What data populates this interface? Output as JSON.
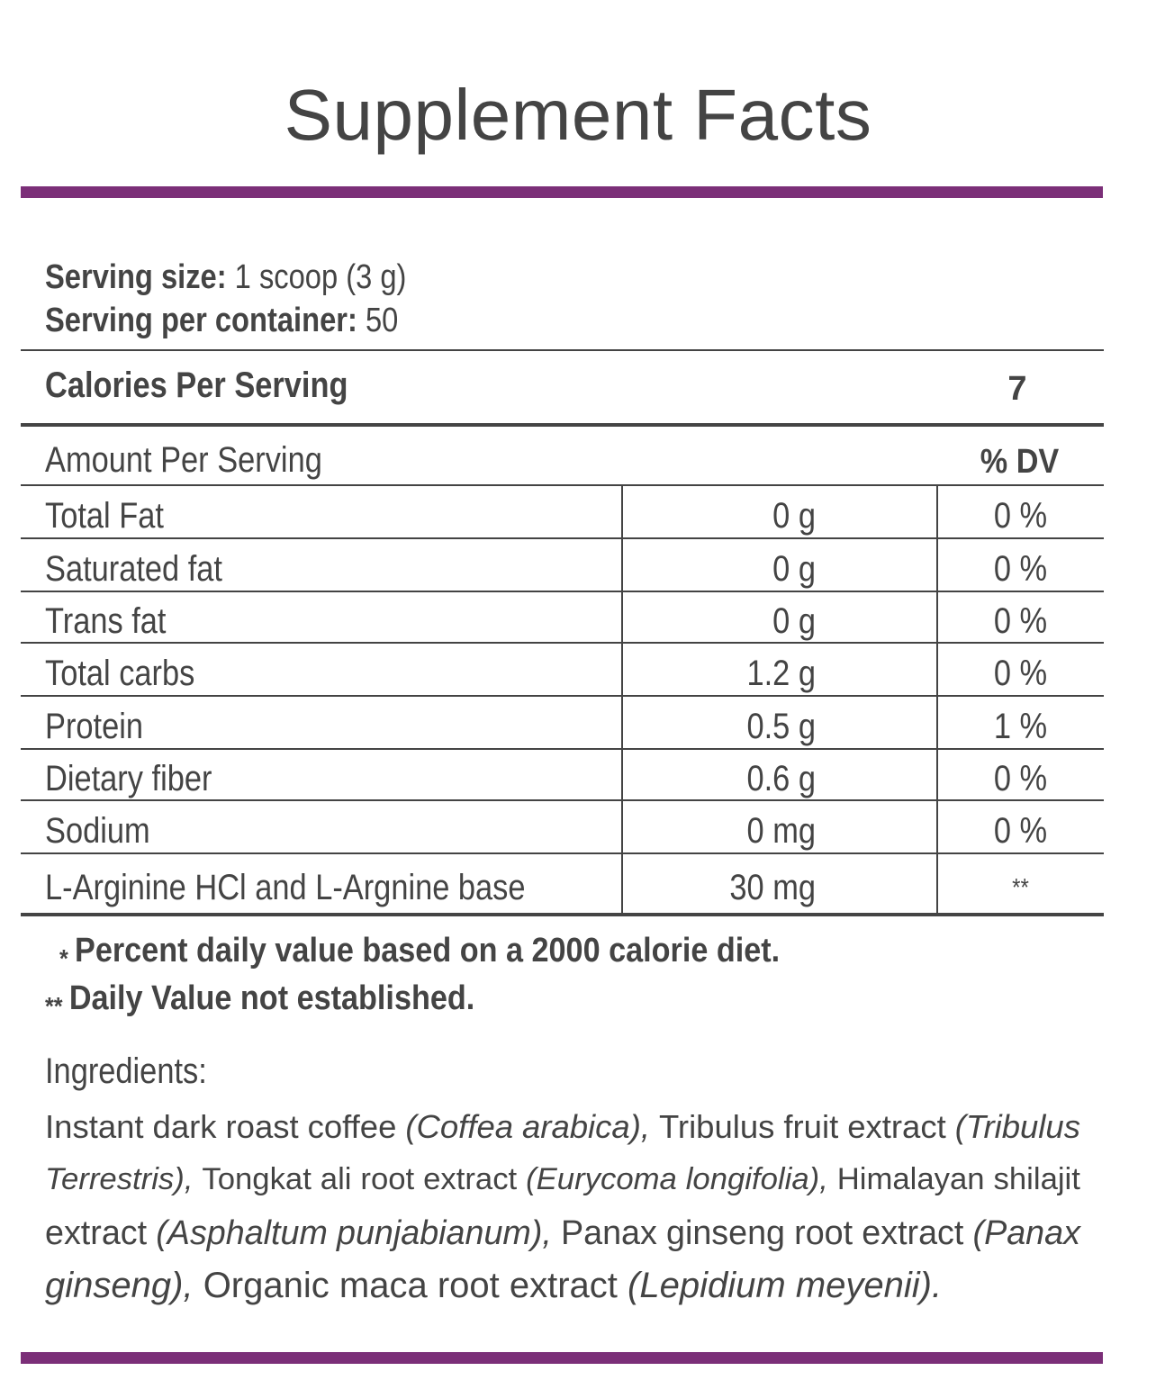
{
  "title": "Supplement Facts",
  "colors": {
    "accent": "#7b2f78",
    "text": "#444444",
    "rule": "#444444"
  },
  "serving": {
    "size_label": "Serving size:",
    "size_value": "1 scoop (3 g)",
    "per_container_label": "Serving per container:",
    "per_container_value": "50"
  },
  "calories": {
    "label": "Calories Per Serving",
    "value": "7"
  },
  "table": {
    "header_label": "Amount Per Serving",
    "dv_header": "% DV",
    "rows": [
      {
        "name": "Total Fat",
        "amount": "0 g",
        "dv": "0 %"
      },
      {
        "name": "Saturated fat",
        "amount": "0 g",
        "dv": "0 %"
      },
      {
        "name": "Trans fat",
        "amount": "0 g",
        "dv": "0 %"
      },
      {
        "name": "Total carbs",
        "amount": "1.2 g",
        "dv": "0 %"
      },
      {
        "name": "Protein",
        "amount": "0.5 g",
        "dv": "1 %"
      },
      {
        "name": "Dietary fiber",
        "amount": "0.6 g",
        "dv": "0 %"
      },
      {
        "name": "Sodium",
        "amount": "0 mg",
        "dv": "0 %"
      },
      {
        "name": "L-Arginine HCl and L-Argnine base",
        "amount": "30 mg",
        "dv": "**"
      }
    ]
  },
  "footnotes": [
    {
      "mark": "*",
      "text": "Percent daily value based on a 2000 calorie diet."
    },
    {
      "mark": "**",
      "text": "Daily Value not established."
    }
  ],
  "ingredients": {
    "heading": "Ingredients:",
    "lines": [
      [
        {
          "t": "Instant",
          "i": false
        },
        {
          "t": "dark",
          "i": false
        },
        {
          "t": "roast",
          "i": false
        },
        {
          "t": "coffee",
          "i": false
        },
        {
          "t": "(Coffea",
          "i": true
        },
        {
          "t": "arabica),",
          "i": true
        },
        {
          "t": "Tribulus",
          "i": false
        },
        {
          "t": "fruit",
          "i": false
        },
        {
          "t": "extract",
          "i": false
        },
        {
          "t": "(Tribulus",
          "i": true
        }
      ],
      [
        {
          "t": "Terrestris),",
          "i": true
        },
        {
          "t": "Tongkat",
          "i": false
        },
        {
          "t": "ali",
          "i": false
        },
        {
          "t": "root",
          "i": false
        },
        {
          "t": "extract",
          "i": false
        },
        {
          "t": "(Eurycoma",
          "i": true
        },
        {
          "t": "longifolia),",
          "i": true
        },
        {
          "t": "Himalayan",
          "i": false
        },
        {
          "t": "shilajit",
          "i": false
        }
      ],
      [
        {
          "t": "extract",
          "i": false
        },
        {
          "t": "(Asphaltum",
          "i": true
        },
        {
          "t": "punjabianum),",
          "i": true
        },
        {
          "t": "Panax",
          "i": false
        },
        {
          "t": "ginseng",
          "i": false
        },
        {
          "t": "root",
          "i": false
        },
        {
          "t": "extract",
          "i": false
        },
        {
          "t": "(Panax",
          "i": true
        }
      ],
      [
        {
          "t": "ginseng),",
          "i": true
        },
        {
          "t": "Organic",
          "i": false
        },
        {
          "t": "maca",
          "i": false
        },
        {
          "t": "root",
          "i": false
        },
        {
          "t": "extract",
          "i": false
        },
        {
          "t": "(Lepidium",
          "i": true
        },
        {
          "t": "meyenii).",
          "i": true
        }
      ]
    ]
  }
}
